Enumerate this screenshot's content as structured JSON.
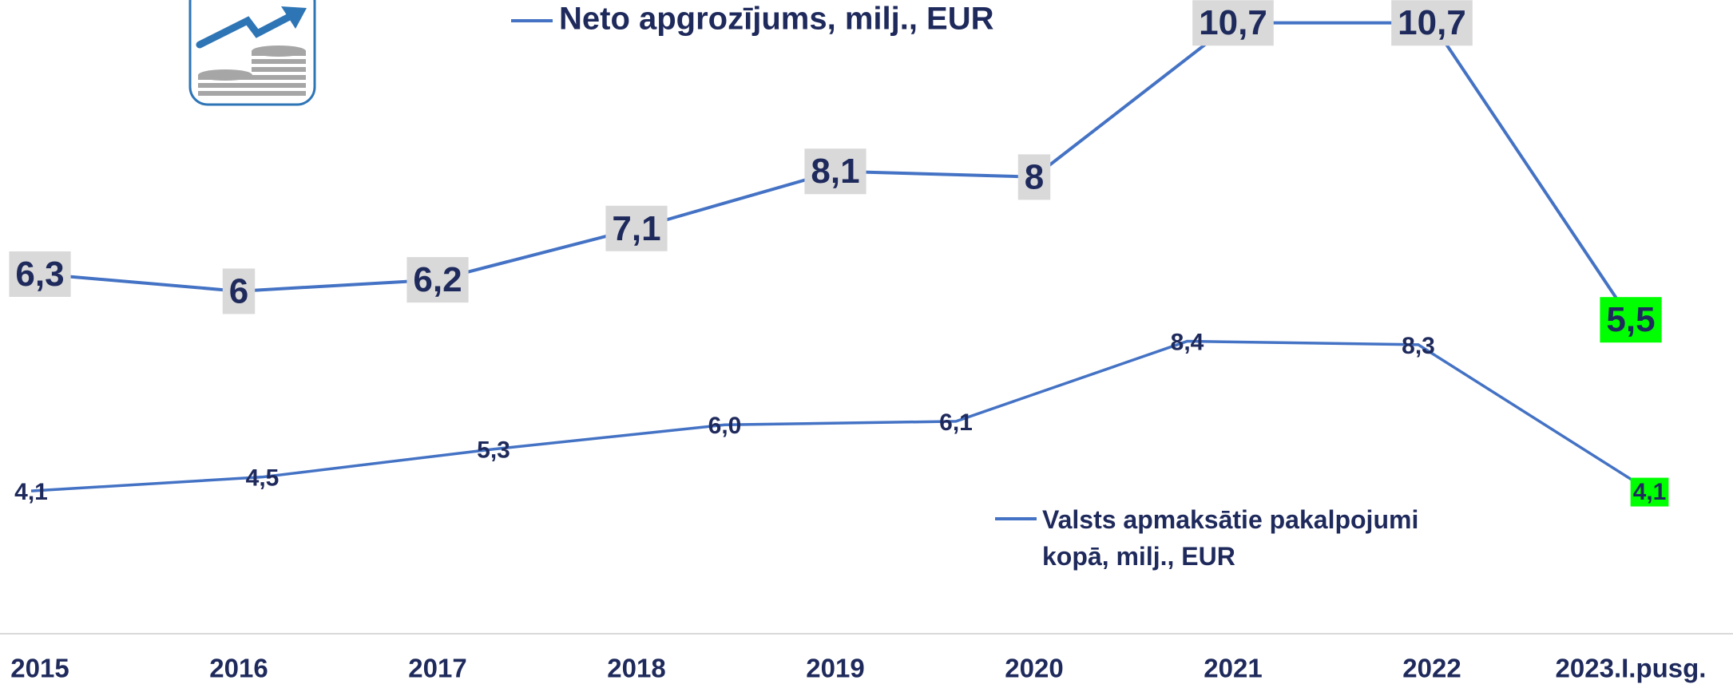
{
  "chart_data": [
    {
      "type": "line",
      "categories": [
        "2015",
        "2016",
        "2017",
        "2018",
        "2019",
        "2020",
        "2021",
        "2022",
        "2023.I.pusg."
      ],
      "series": [
        {
          "name": "Neto apgrozījums, milj., EUR",
          "color": "#4472c4",
          "values": [
            6.3,
            6,
            6.2,
            7.1,
            8.1,
            8,
            10.7,
            10.7,
            5.5
          ],
          "value_labels": [
            "6,3",
            "6",
            "6,2",
            "7,1",
            "8,1",
            "8",
            "10,7",
            "10,7",
            "5,5"
          ],
          "label_backgrounds": [
            "#d9d9d9",
            "#d9d9d9",
            "#d9d9d9",
            "#d9d9d9",
            "#d9d9d9",
            "#d9d9d9",
            "#d9d9d9",
            "#d9d9d9",
            "#00ff00"
          ]
        }
      ],
      "ylim": [
        0,
        11.1
      ]
    },
    {
      "type": "line",
      "categories": [
        null,
        null,
        null,
        null,
        null,
        null,
        null,
        null
      ],
      "series": [
        {
          "name": "Valsts apmaksātie pakalpojumi kopā, milj., EUR",
          "color": "#4472c4",
          "values": [
            4.1,
            4.5,
            5.3,
            6.0,
            6.1,
            8.4,
            8.3,
            4.1
          ],
          "value_labels": [
            "4,1",
            "4,5",
            "5,3",
            "6,0",
            "6,1",
            "8,4",
            "8,3",
            "4,1"
          ],
          "label_backgrounds": [
            null,
            null,
            null,
            null,
            null,
            null,
            null,
            "#00ff00"
          ]
        }
      ],
      "ylim": [
        0,
        18.2
      ]
    }
  ]
}
